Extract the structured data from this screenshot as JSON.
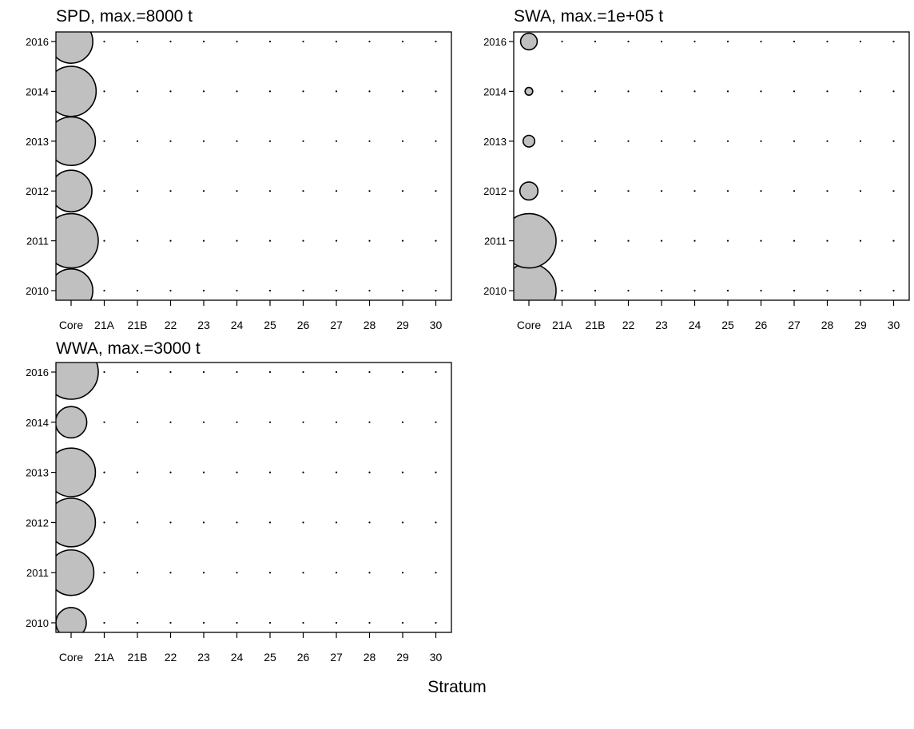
{
  "colors": {
    "bubble_fill": "#c0c0c0",
    "bubble_stroke": "#000000",
    "background": "#ffffff"
  },
  "chart_data": {
    "type": "scatter",
    "subtype": "bubble-matrix",
    "xlabel": "Stratum",
    "grid": false,
    "categories": [
      "Core",
      "21A",
      "21B",
      "22",
      "23",
      "24",
      "25",
      "26",
      "27",
      "28",
      "29",
      "30"
    ],
    "years": [
      "2010",
      "2011",
      "2012",
      "2013",
      "2014",
      "2016"
    ],
    "panels": [
      {
        "title": "SPD, max.=8000 t",
        "max": 8000,
        "unit": "t",
        "series": [
          {
            "x": "Core",
            "y": "2010",
            "value": 5100
          },
          {
            "x": "Core",
            "y": "2011",
            "value": 8000
          },
          {
            "x": "Core",
            "y": "2012",
            "value": 4700
          },
          {
            "x": "Core",
            "y": "2013",
            "value": 6400
          },
          {
            "x": "Core",
            "y": "2014",
            "value": 6800
          },
          {
            "x": "Core",
            "y": "2016",
            "value": 5100
          }
        ]
      },
      {
        "title": "SWA, max.=1e+05 t",
        "max": 100000,
        "unit": "t",
        "series": [
          {
            "x": "Core",
            "y": "2010",
            "value": 100000
          },
          {
            "x": "Core",
            "y": "2011",
            "value": 100000
          },
          {
            "x": "Core",
            "y": "2012",
            "value": 11000
          },
          {
            "x": "Core",
            "y": "2013",
            "value": 4600
          },
          {
            "x": "Core",
            "y": "2014",
            "value": 2000
          },
          {
            "x": "Core",
            "y": "2016",
            "value": 9400
          }
        ]
      },
      {
        "title": "WWA, max.=3000 t",
        "max": 3000,
        "unit": "t",
        "series": [
          {
            "x": "Core",
            "y": "2010",
            "value": 940
          },
          {
            "x": "Core",
            "y": "2011",
            "value": 2100
          },
          {
            "x": "Core",
            "y": "2012",
            "value": 2400
          },
          {
            "x": "Core",
            "y": "2013",
            "value": 2400
          },
          {
            "x": "Core",
            "y": "2014",
            "value": 1000
          },
          {
            "x": "Core",
            "y": "2016",
            "value": 3000
          }
        ]
      }
    ]
  }
}
